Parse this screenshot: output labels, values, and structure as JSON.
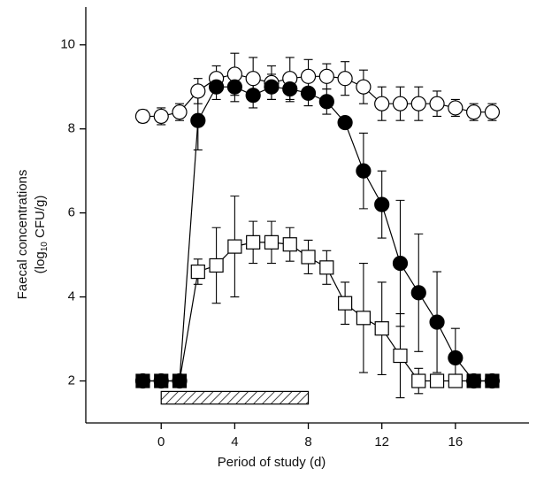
{
  "chart_data": {
    "type": "line",
    "xlabel": "Period of study (d)",
    "ylabel": [
      "Faecal concentrations",
      [
        "(log",
        "10",
        " CFU/g)"
      ]
    ],
    "x": [
      -1,
      0,
      1,
      2,
      3,
      4,
      5,
      6,
      7,
      8,
      9,
      10,
      11,
      12,
      13,
      14,
      15,
      16,
      17,
      18
    ],
    "series": [
      {
        "color": "#000000",
        "marker": "circle",
        "filled": false,
        "values": [
          8.3,
          8.3,
          8.4,
          8.9,
          9.2,
          9.3,
          9.2,
          9.1,
          9.2,
          9.25,
          9.25,
          9.2,
          9.0,
          8.6,
          8.6,
          8.6,
          8.6,
          8.5,
          8.4,
          8.4
        ],
        "errors": [
          0.15,
          0.2,
          0.2,
          0.3,
          0.3,
          0.5,
          0.5,
          0.4,
          0.5,
          0.4,
          0.3,
          0.4,
          0.4,
          0.4,
          0.4,
          0.4,
          0.3,
          0.2,
          0.2,
          0.2
        ]
      },
      {
        "color": "#000000",
        "marker": "circle",
        "filled": true,
        "values": [
          2,
          2,
          2,
          8.2,
          9.0,
          9.0,
          8.8,
          9.0,
          8.95,
          8.85,
          8.65,
          8.15,
          7.0,
          6.2,
          4.8,
          4.1,
          3.4,
          2.55,
          2,
          2
        ],
        "errors": [
          0,
          0,
          0,
          0.7,
          0.3,
          0.35,
          0.3,
          0.3,
          0.3,
          0.3,
          0.3,
          0,
          0.9,
          0.8,
          1.5,
          1.4,
          1.2,
          0.7,
          0,
          0
        ]
      },
      {
        "color": "#000000",
        "marker": "square",
        "filled": [
          true,
          true,
          true,
          false,
          false,
          false,
          false,
          false,
          false,
          false,
          false,
          false,
          false,
          false,
          false,
          false,
          false,
          false,
          true,
          true
        ],
        "values": [
          2,
          2,
          2,
          4.6,
          4.75,
          5.2,
          5.3,
          5.3,
          5.25,
          4.95,
          4.7,
          3.85,
          3.5,
          3.25,
          2.6,
          2.0,
          2.0,
          2.0,
          2,
          2
        ],
        "errors": [
          0,
          0,
          0,
          0.3,
          0.9,
          1.2,
          0.5,
          0.5,
          0.4,
          0.4,
          0.4,
          0.5,
          1.3,
          1.1,
          1.0,
          0.3,
          0,
          0,
          0,
          0
        ]
      }
    ],
    "dosing_period": [
      0,
      8
    ],
    "xlim": [
      -4.1,
      20
    ],
    "ylim": [
      1.0,
      10.9
    ],
    "xticks": [
      0,
      4,
      8,
      12,
      16
    ],
    "yticks": [
      2,
      4,
      6,
      8,
      10
    ]
  }
}
